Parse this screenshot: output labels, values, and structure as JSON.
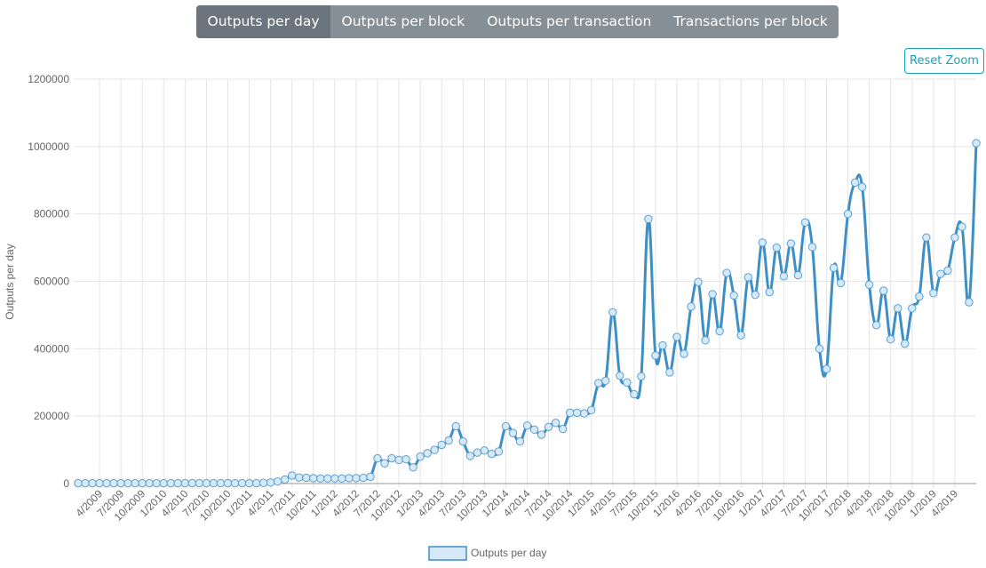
{
  "tabs": [
    {
      "label": "Outputs per day",
      "active": true
    },
    {
      "label": "Outputs per block",
      "active": false
    },
    {
      "label": "Outputs per transaction",
      "active": false
    },
    {
      "label": "Transactions per block",
      "active": false
    }
  ],
  "reset_zoom_label": "Reset Zoom",
  "colors": {
    "line": "#3d8fc6",
    "point_fill": "#d6e9f8",
    "grid": "#e5e5e5",
    "tab_active": "#6c757d",
    "tab_bg": "#868e96",
    "reset": "#17a2b8"
  },
  "chart_data": {
    "type": "line",
    "title": "",
    "xlabel": "",
    "ylabel": "Outputs per day",
    "legend": [
      "Outputs per day"
    ],
    "legend_position": "bottom",
    "grid": true,
    "ylim": [
      0,
      1200000
    ],
    "yticks": [
      "0",
      "200000",
      "400000",
      "600000",
      "800000",
      "1000000",
      "1200000"
    ],
    "xticks": [
      "4/2009",
      "7/2009",
      "10/2009",
      "1/2010",
      "4/2010",
      "7/2010",
      "10/2010",
      "1/2011",
      "4/2011",
      "7/2011",
      "10/2011",
      "1/2012",
      "4/2012",
      "7/2012",
      "10/2012",
      "1/2013",
      "4/2013",
      "7/2013",
      "10/2013",
      "1/2014",
      "4/2014",
      "7/2014",
      "10/2014",
      "1/2015",
      "4/2015",
      "7/2015",
      "10/2015",
      "1/2016",
      "4/2016",
      "7/2016",
      "10/2016",
      "1/2017",
      "4/2017",
      "7/2017",
      "10/2017",
      "1/2018",
      "4/2018",
      "7/2018",
      "10/2018",
      "1/2019",
      "4/2019"
    ],
    "series": [
      {
        "name": "Outputs per day",
        "values": [
          1000,
          1000,
          1000,
          1000,
          1000,
          1000,
          1000,
          1000,
          1000,
          1000,
          1000,
          1000,
          1000,
          1000,
          1000,
          1000,
          1000,
          1000,
          1000,
          1000,
          1000,
          1000,
          1000,
          1000,
          1000,
          1000,
          2000,
          3000,
          6000,
          12000,
          24000,
          18000,
          17000,
          16000,
          15000,
          15000,
          15000,
          15000,
          16000,
          16000,
          17000,
          20000,
          75000,
          60000,
          75000,
          70000,
          72000,
          48000,
          80000,
          90000,
          100000,
          115000,
          128000,
          170000,
          125000,
          82000,
          92000,
          98000,
          88000,
          95000,
          170000,
          150000,
          125000,
          172000,
          160000,
          145000,
          168000,
          180000,
          162000,
          210000,
          210000,
          208000,
          218000,
          298000,
          305000,
          508000,
          320000,
          300000,
          265000,
          318000,
          785000,
          380000,
          410000,
          330000,
          435000,
          385000,
          525000,
          598000,
          425000,
          562000,
          452000,
          625000,
          558000,
          440000,
          612000,
          560000,
          715000,
          568000,
          700000,
          615000,
          712000,
          618000,
          775000,
          702000,
          400000,
          340000,
          640000,
          595000,
          800000,
          893000,
          880000,
          590000,
          470000,
          572000,
          428000,
          520000,
          415000,
          520000,
          555000,
          730000,
          565000,
          622000,
          632000,
          730000,
          762000,
          538000,
          1010000
        ]
      }
    ]
  }
}
